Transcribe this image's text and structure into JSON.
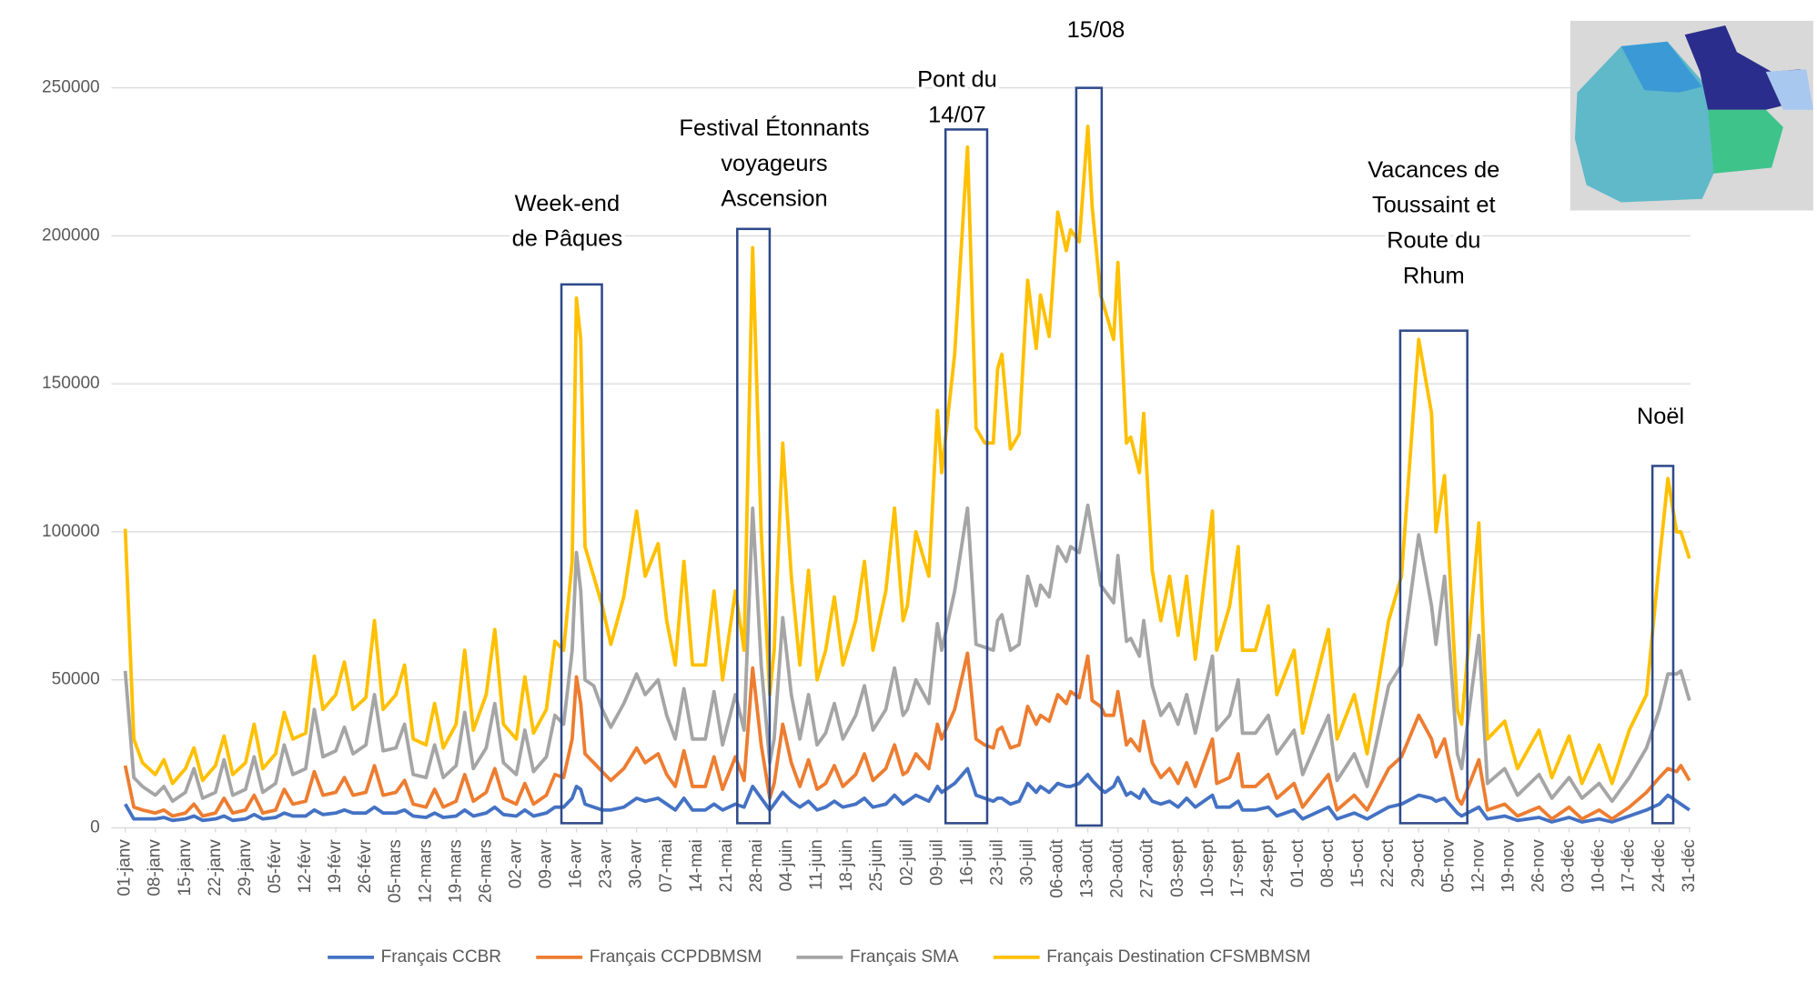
{
  "chart_data": {
    "type": "line",
    "x": [
      0,
      2,
      4,
      7,
      9,
      11,
      14,
      16,
      18,
      21,
      23,
      25,
      28,
      30,
      32,
      35,
      37,
      39,
      42,
      44,
      46,
      49,
      51,
      53,
      56,
      58,
      60,
      63,
      65,
      67,
      70,
      72,
      74,
      77,
      79,
      81,
      84,
      86,
      88,
      91,
      93,
      95,
      98,
      100,
      102,
      104,
      105,
      106,
      107,
      109,
      111,
      113,
      116,
      119,
      121,
      124,
      126,
      128,
      130,
      132,
      135,
      137,
      139,
      142,
      144,
      146,
      148,
      150,
      151,
      153,
      155,
      157,
      159,
      161,
      163,
      165,
      167,
      170,
      172,
      174,
      177,
      179,
      181,
      182,
      184,
      187,
      189,
      190,
      193,
      196,
      198,
      200,
      202,
      203,
      204,
      206,
      208,
      210,
      212,
      213,
      215,
      217,
      219,
      220,
      222,
      224,
      225,
      227,
      228,
      230,
      231,
      233,
      234,
      236,
      237,
      239,
      241,
      243,
      245,
      247,
      249,
      253,
      254,
      257,
      259,
      260,
      263,
      266,
      268,
      272,
      274,
      280,
      282,
      286,
      289,
      294,
      297,
      301,
      304,
      305,
      307,
      310,
      311,
      315,
      317,
      321,
      324,
      329,
      332,
      336,
      339,
      343,
      346,
      350,
      354,
      357,
      359,
      361,
      362,
      364
    ],
    "xlim": [
      0,
      364
    ],
    "xticks": [
      {
        "value": 0,
        "label": "01-janv"
      },
      {
        "value": 7,
        "label": "08-janv"
      },
      {
        "value": 14,
        "label": "15-janv"
      },
      {
        "value": 21,
        "label": "22-janv"
      },
      {
        "value": 28,
        "label": "29-janv"
      },
      {
        "value": 35,
        "label": "05-févr"
      },
      {
        "value": 42,
        "label": "12-févr"
      },
      {
        "value": 49,
        "label": "19-févr"
      },
      {
        "value": 56,
        "label": "26-févr"
      },
      {
        "value": 63,
        "label": "05-mars"
      },
      {
        "value": 70,
        "label": "12-mars"
      },
      {
        "value": 77,
        "label": "19-mars"
      },
      {
        "value": 84,
        "label": "26-mars"
      },
      {
        "value": 91,
        "label": "02-avr"
      },
      {
        "value": 98,
        "label": "09-avr"
      },
      {
        "value": 105,
        "label": "16-avr"
      },
      {
        "value": 112,
        "label": "23-avr"
      },
      {
        "value": 119,
        "label": "30-avr"
      },
      {
        "value": 126,
        "label": "07-mai"
      },
      {
        "value": 133,
        "label": "14-mai"
      },
      {
        "value": 140,
        "label": "21-mai"
      },
      {
        "value": 147,
        "label": "28-mai"
      },
      {
        "value": 154,
        "label": "04-juin"
      },
      {
        "value": 161,
        "label": "11-juin"
      },
      {
        "value": 168,
        "label": "18-juin"
      },
      {
        "value": 175,
        "label": "25-juin"
      },
      {
        "value": 182,
        "label": "02-juil"
      },
      {
        "value": 189,
        "label": "09-juil"
      },
      {
        "value": 196,
        "label": "16-juil"
      },
      {
        "value": 203,
        "label": "23-juil"
      },
      {
        "value": 210,
        "label": "30-juil"
      },
      {
        "value": 217,
        "label": "06-août"
      },
      {
        "value": 224,
        "label": "13-août"
      },
      {
        "value": 231,
        "label": "20-août"
      },
      {
        "value": 238,
        "label": "27-août"
      },
      {
        "value": 245,
        "label": "03-sept"
      },
      {
        "value": 252,
        "label": "10-sept"
      },
      {
        "value": 259,
        "label": "17-sept"
      },
      {
        "value": 266,
        "label": "24-sept"
      },
      {
        "value": 273,
        "label": "01-oct"
      },
      {
        "value": 280,
        "label": "08-oct"
      },
      {
        "value": 287,
        "label": "15-oct"
      },
      {
        "value": 294,
        "label": "22-oct"
      },
      {
        "value": 301,
        "label": "29-oct"
      },
      {
        "value": 308,
        "label": "05-nov"
      },
      {
        "value": 315,
        "label": "12-nov"
      },
      {
        "value": 322,
        "label": "19-nov"
      },
      {
        "value": 329,
        "label": "26-nov"
      },
      {
        "value": 336,
        "label": "03-déc"
      },
      {
        "value": 343,
        "label": "10-déc"
      },
      {
        "value": 350,
        "label": "17-déc"
      },
      {
        "value": 357,
        "label": "24-déc"
      },
      {
        "value": 364,
        "label": "31-déc"
      }
    ],
    "ylim": [
      0,
      250000
    ],
    "yticks": [
      0,
      50000,
      100000,
      150000,
      200000,
      250000
    ],
    "grid": true,
    "legend": "bottom",
    "series": [
      {
        "name": "Français CCBR",
        "color": "#4472c4",
        "values": [
          8000,
          3000,
          3000,
          3000,
          3500,
          2500,
          3000,
          4000,
          2500,
          3000,
          4000,
          2500,
          3000,
          4500,
          3000,
          3500,
          5000,
          4000,
          4000,
          6000,
          4500,
          5000,
          6000,
          5000,
          5000,
          7000,
          5000,
          5000,
          6000,
          4000,
          3500,
          5000,
          3500,
          4000,
          6000,
          4000,
          5000,
          7000,
          4500,
          4000,
          6000,
          4000,
          5000,
          7000,
          7000,
          10000,
          14000,
          13000,
          8000,
          7000,
          6000,
          6000,
          7000,
          10000,
          9000,
          10000,
          8000,
          6000,
          10000,
          6000,
          6000,
          8000,
          6000,
          8000,
          7000,
          14000,
          10000,
          6000,
          8000,
          12000,
          9000,
          7000,
          9000,
          6000,
          7000,
          9000,
          7000,
          8000,
          10000,
          7000,
          8000,
          11000,
          8000,
          9000,
          11000,
          9000,
          14000,
          12000,
          15000,
          20000,
          11000,
          10000,
          9000,
          10000,
          10000,
          8000,
          9000,
          15000,
          12000,
          14000,
          12000,
          15000,
          14000,
          14000,
          15000,
          18000,
          16000,
          13000,
          12000,
          14000,
          17000,
          11000,
          12000,
          10000,
          13000,
          9000,
          8000,
          9000,
          7000,
          10000,
          7000,
          11000,
          7000,
          7000,
          9000,
          6000,
          6000,
          7000,
          4000,
          6000,
          3000,
          7000,
          3000,
          5000,
          3000,
          7000,
          8000,
          11000,
          10000,
          9000,
          10000,
          5000,
          4000,
          7000,
          3000,
          4000,
          2500,
          3500,
          2000,
          3500,
          2000,
          3000,
          2000,
          4000,
          6000,
          8000,
          11000,
          9000,
          8000,
          6000
        ]
      },
      {
        "name": "Français CCPDBMSM",
        "color": "#ed7d31",
        "values": [
          21000,
          7000,
          6000,
          5000,
          6000,
          4000,
          5000,
          8000,
          4000,
          5000,
          10000,
          5000,
          6000,
          11000,
          5000,
          6000,
          13000,
          8000,
          9000,
          19000,
          11000,
          12000,
          17000,
          11000,
          12000,
          21000,
          11000,
          12000,
          16000,
          8000,
          7000,
          13000,
          7000,
          9000,
          18000,
          9000,
          12000,
          20000,
          10000,
          8000,
          15000,
          8000,
          11000,
          18000,
          17000,
          30000,
          51000,
          42000,
          25000,
          22000,
          19000,
          16000,
          20000,
          27000,
          22000,
          25000,
          18000,
          14000,
          26000,
          14000,
          14000,
          24000,
          13000,
          24000,
          16000,
          54000,
          28000,
          10000,
          15000,
          35000,
          22000,
          14000,
          23000,
          13000,
          15000,
          21000,
          14000,
          18000,
          25000,
          16000,
          20000,
          28000,
          18000,
          19000,
          25000,
          20000,
          35000,
          30000,
          40000,
          59000,
          30000,
          28000,
          27000,
          33000,
          34000,
          27000,
          28000,
          41000,
          35000,
          38000,
          36000,
          45000,
          42000,
          46000,
          44000,
          58000,
          43000,
          41000,
          38000,
          38000,
          46000,
          28000,
          30000,
          26000,
          36000,
          22000,
          17000,
          20000,
          15000,
          22000,
          14000,
          30000,
          15000,
          17000,
          25000,
          14000,
          14000,
          18000,
          10000,
          15000,
          7000,
          18000,
          6000,
          11000,
          6000,
          20000,
          24000,
          38000,
          30000,
          24000,
          30000,
          10000,
          8000,
          23000,
          6000,
          8000,
          4000,
          7000,
          3000,
          7000,
          3000,
          6000,
          3000,
          7000,
          12000,
          17000,
          20000,
          19000,
          21000,
          16000
        ]
      },
      {
        "name": "Français SMA",
        "color": "#a5a5a5",
        "values": [
          53000,
          17000,
          14000,
          11000,
          14000,
          9000,
          12000,
          20000,
          10000,
          12000,
          23000,
          11000,
          13000,
          24000,
          12000,
          15000,
          28000,
          18000,
          20000,
          40000,
          24000,
          26000,
          34000,
          25000,
          28000,
          45000,
          26000,
          27000,
          35000,
          18000,
          17000,
          28000,
          17000,
          21000,
          39000,
          20000,
          27000,
          42000,
          22000,
          18000,
          33000,
          19000,
          24000,
          38000,
          35000,
          60000,
          93000,
          80000,
          50000,
          48000,
          40000,
          34000,
          42000,
          52000,
          45000,
          50000,
          38000,
          30000,
          47000,
          30000,
          30000,
          46000,
          28000,
          45000,
          33000,
          108000,
          55000,
          22000,
          30000,
          71000,
          45000,
          30000,
          45000,
          28000,
          32000,
          42000,
          30000,
          38000,
          48000,
          33000,
          40000,
          54000,
          38000,
          40000,
          50000,
          42000,
          69000,
          60000,
          80000,
          108000,
          62000,
          61000,
          60000,
          70000,
          72000,
          60000,
          62000,
          85000,
          75000,
          82000,
          78000,
          95000,
          90000,
          95000,
          93000,
          109000,
          100000,
          82000,
          80000,
          76000,
          92000,
          63000,
          64000,
          58000,
          70000,
          48000,
          38000,
          42000,
          35000,
          45000,
          32000,
          58000,
          33000,
          38000,
          50000,
          32000,
          32000,
          38000,
          25000,
          33000,
          18000,
          38000,
          16000,
          25000,
          14000,
          48000,
          55000,
          99000,
          75000,
          62000,
          85000,
          25000,
          20000,
          65000,
          15000,
          20000,
          11000,
          18000,
          10000,
          17000,
          10000,
          15000,
          9000,
          17000,
          27000,
          40000,
          52000,
          52000,
          53000,
          43000
        ]
      },
      {
        "name": "Français Destination CFSMBMSM",
        "color": "#ffc000",
        "values": [
          101000,
          30000,
          22000,
          18000,
          23000,
          15000,
          20000,
          27000,
          16000,
          21000,
          31000,
          18000,
          22000,
          35000,
          20000,
          25000,
          39000,
          30000,
          32000,
          58000,
          40000,
          45000,
          56000,
          40000,
          44000,
          70000,
          40000,
          45000,
          55000,
          30000,
          28000,
          42000,
          27000,
          35000,
          60000,
          33000,
          45000,
          67000,
          35000,
          30000,
          51000,
          32000,
          40000,
          63000,
          60000,
          90000,
          179000,
          165000,
          95000,
          85000,
          75000,
          62000,
          78000,
          107000,
          85000,
          96000,
          70000,
          55000,
          90000,
          55000,
          55000,
          80000,
          50000,
          80000,
          60000,
          196000,
          100000,
          45000,
          60000,
          130000,
          85000,
          55000,
          87000,
          50000,
          60000,
          78000,
          55000,
          70000,
          90000,
          60000,
          80000,
          108000,
          70000,
          75000,
          100000,
          85000,
          141000,
          120000,
          160000,
          230000,
          135000,
          130000,
          130000,
          155000,
          160000,
          128000,
          133000,
          185000,
          162000,
          180000,
          166000,
          208000,
          195000,
          202000,
          198000,
          237000,
          210000,
          180000,
          175000,
          165000,
          191000,
          130000,
          132000,
          120000,
          140000,
          87000,
          70000,
          85000,
          65000,
          85000,
          57000,
          107000,
          60000,
          75000,
          95000,
          60000,
          60000,
          75000,
          45000,
          60000,
          32000,
          67000,
          30000,
          45000,
          25000,
          70000,
          85000,
          165000,
          140000,
          100000,
          119000,
          40000,
          35000,
          103000,
          30000,
          36000,
          20000,
          33000,
          17000,
          31000,
          15000,
          28000,
          15000,
          33000,
          45000,
          90000,
          118000,
          100000,
          100000,
          91000
        ]
      }
    ],
    "annotations": [
      {
        "text": [
          "Week-end",
          "de Pâques"
        ]
      },
      {
        "text": [
          "Festival Étonnants",
          "voyageurs",
          "Ascension"
        ]
      },
      {
        "text": [
          "Pont du",
          "14/07"
        ]
      },
      {
        "text": [
          "15/08"
        ]
      },
      {
        "text": [
          "Vacances de",
          "Toussaint et",
          "Route du",
          "Rhum"
        ]
      },
      {
        "text": [
          "Noël"
        ]
      }
    ]
  }
}
